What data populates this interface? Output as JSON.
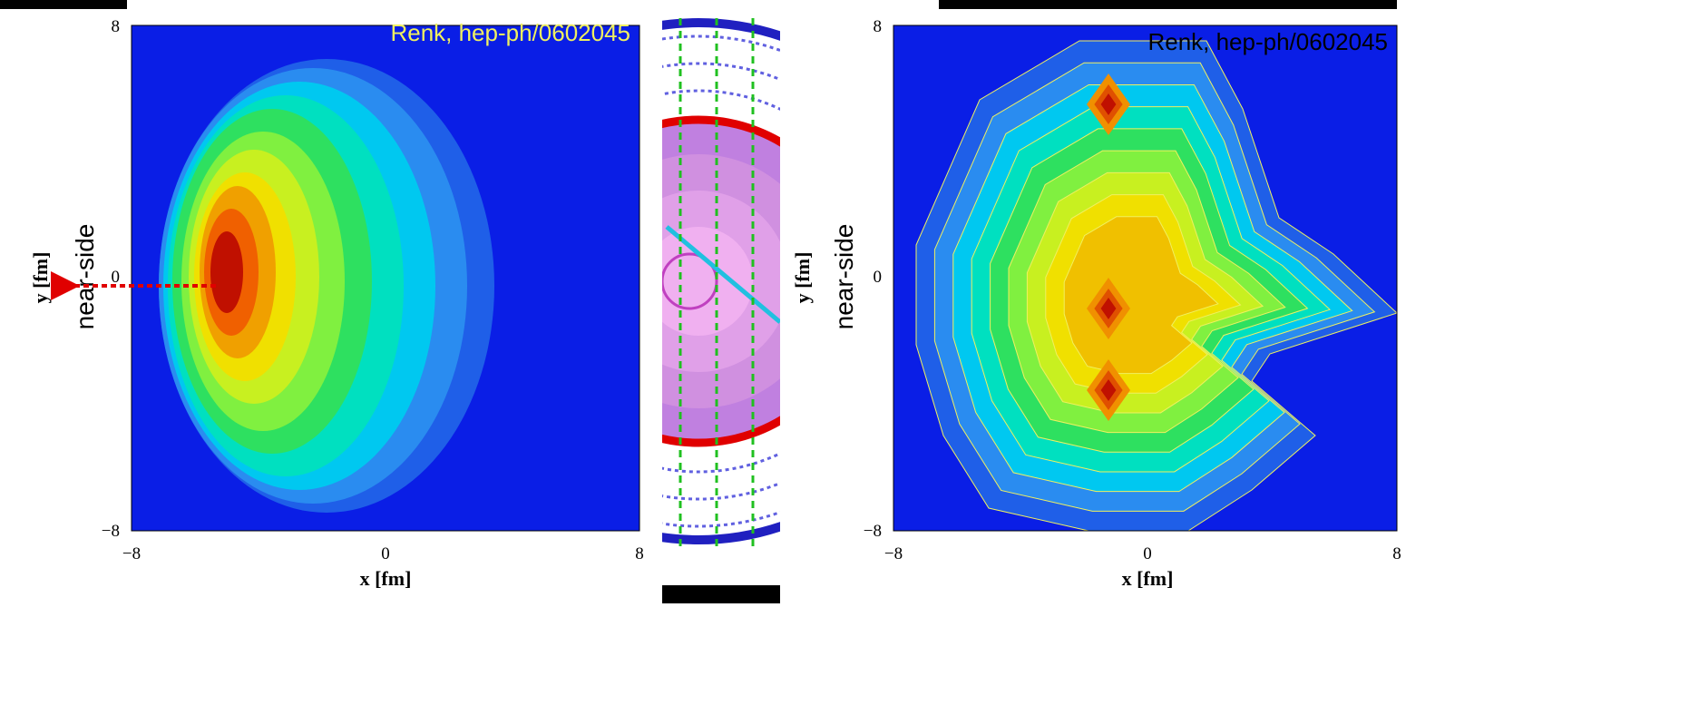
{
  "panels": [
    {
      "annotation": "Renk, hep-ph/0602045",
      "side_label": "near-side",
      "y_label": "y [fm]",
      "x_label": "x [fm]",
      "x_ticks": [
        "−8",
        "0",
        "8"
      ],
      "y_ticks": [
        "8",
        "0",
        "−8"
      ]
    },
    {
      "annotation": "Renk, hep-ph/0602045",
      "side_label": "near-side",
      "y_label": "y [fm]",
      "x_label": "x [fm]",
      "x_ticks": [
        "−8",
        "0",
        "8"
      ],
      "y_ticks": [
        "8",
        "0",
        "−8"
      ]
    }
  ]
}
